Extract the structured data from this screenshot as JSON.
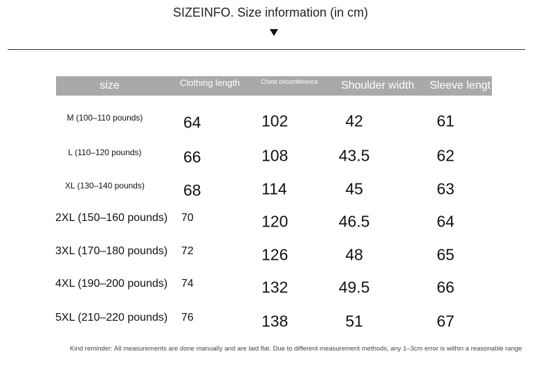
{
  "header": {
    "title": "SIZEINFO. Size information (in cm)"
  },
  "table": {
    "columns": [
      "size",
      "Clothing length",
      "Chest circumference",
      "Shoulder width",
      "Sleeve lengt"
    ],
    "rows": [
      [
        "M (100–110 pounds)",
        64,
        102,
        42,
        61
      ],
      [
        "L (110–120 pounds)",
        66,
        108,
        43.5,
        62
      ],
      [
        "XL (130–140 pounds)",
        68,
        114,
        45,
        63
      ],
      [
        "2XL (150–160 pounds)",
        70,
        120,
        46.5,
        64
      ],
      [
        "3XL (170–180 pounds)",
        72,
        126,
        48,
        65
      ],
      [
        "4XL (190–200 pounds)",
        74,
        132,
        49.5,
        66
      ],
      [
        "5XL (210–220 pounds)",
        76,
        138,
        51,
        67
      ]
    ]
  },
  "note": "Kind reminder: All measurements are done manually and are laid flat. Due to different measurement methods, any 1–3cm error is within a reasonable range"
}
